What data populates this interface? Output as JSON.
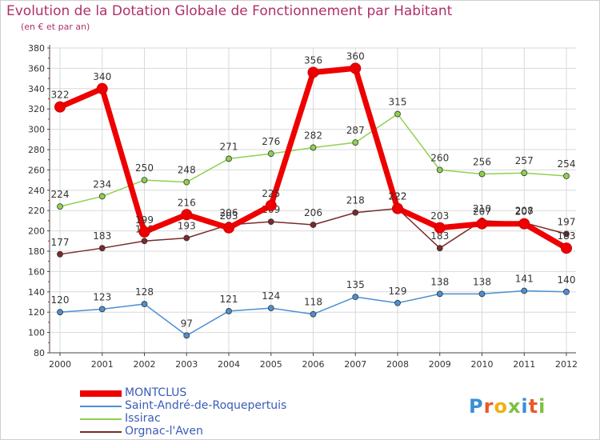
{
  "title": "Evolution de la Dotation Globale de Fonctionnement par Habitant",
  "subtitle": "(en € et par an)",
  "logo_text": "Proxiti",
  "colors": {
    "title": "#b0306a",
    "legend_text": "#3a5cb8",
    "grid": "#d9d9d9",
    "axis": "#444444"
  },
  "chart_data": {
    "type": "line",
    "title": "Evolution de la Dotation Globale de Fonctionnement par Habitant",
    "subtitle": "(en € et par an)",
    "xlabel": "",
    "ylabel": "",
    "x": [
      "2000",
      "2001",
      "2002",
      "2003",
      "2004",
      "2005",
      "2006",
      "2007",
      "2008",
      "2009",
      "2010",
      "2011",
      "2012"
    ],
    "ylim": [
      80,
      380
    ],
    "yticks": [
      80,
      100,
      120,
      140,
      160,
      180,
      200,
      220,
      240,
      260,
      280,
      300,
      320,
      340,
      360,
      380
    ],
    "grid": true,
    "legend_position": "bottom-left",
    "series": [
      {
        "name": "Issirac",
        "color": "#8fd14f",
        "values": [
          224,
          234,
          250,
          248,
          271,
          276,
          282,
          287,
          315,
          260,
          256,
          257,
          254
        ],
        "labels": [
          "224",
          "234",
          "250",
          "248",
          "271",
          "276",
          "282",
          "287",
          "315",
          "260",
          "256",
          "257",
          "254"
        ]
      },
      {
        "name": "Saint-André-de-Roquepertuis",
        "color": "#4d8fd1",
        "values": [
          120,
          123,
          128,
          97,
          121,
          124,
          118,
          135,
          129,
          138,
          138,
          141,
          140
        ],
        "labels": [
          "120",
          "123",
          "128",
          "97",
          "121",
          "124",
          "118",
          "135",
          "129",
          "138",
          "138",
          "141",
          "140"
        ]
      },
      {
        "name": "Orgnac-l'Aven",
        "color": "#7a2a2a",
        "values": [
          177,
          183,
          190,
          193,
          206,
          209,
          206,
          218,
          222,
          183,
          210,
          208,
          197
        ],
        "labels": [
          "177",
          "183",
          "190",
          "193",
          "206",
          "209",
          "206",
          "218",
          "222",
          "183",
          "210",
          "208",
          "197"
        ]
      },
      {
        "name": "MONTCLUS",
        "color": "#ee0000",
        "values": [
          322,
          340,
          199,
          216,
          203,
          225,
          356,
          360,
          222,
          203,
          207,
          207,
          183
        ],
        "labels": [
          "322",
          "340",
          "199",
          "216",
          "203",
          "225",
          "356",
          "360",
          "222",
          "203",
          "207",
          "207",
          "183"
        ]
      }
    ],
    "legend": [
      "MONTCLUS",
      "Saint-André-de-Roquepertuis",
      "Issirac",
      "Orgnac-l'Aven"
    ]
  }
}
